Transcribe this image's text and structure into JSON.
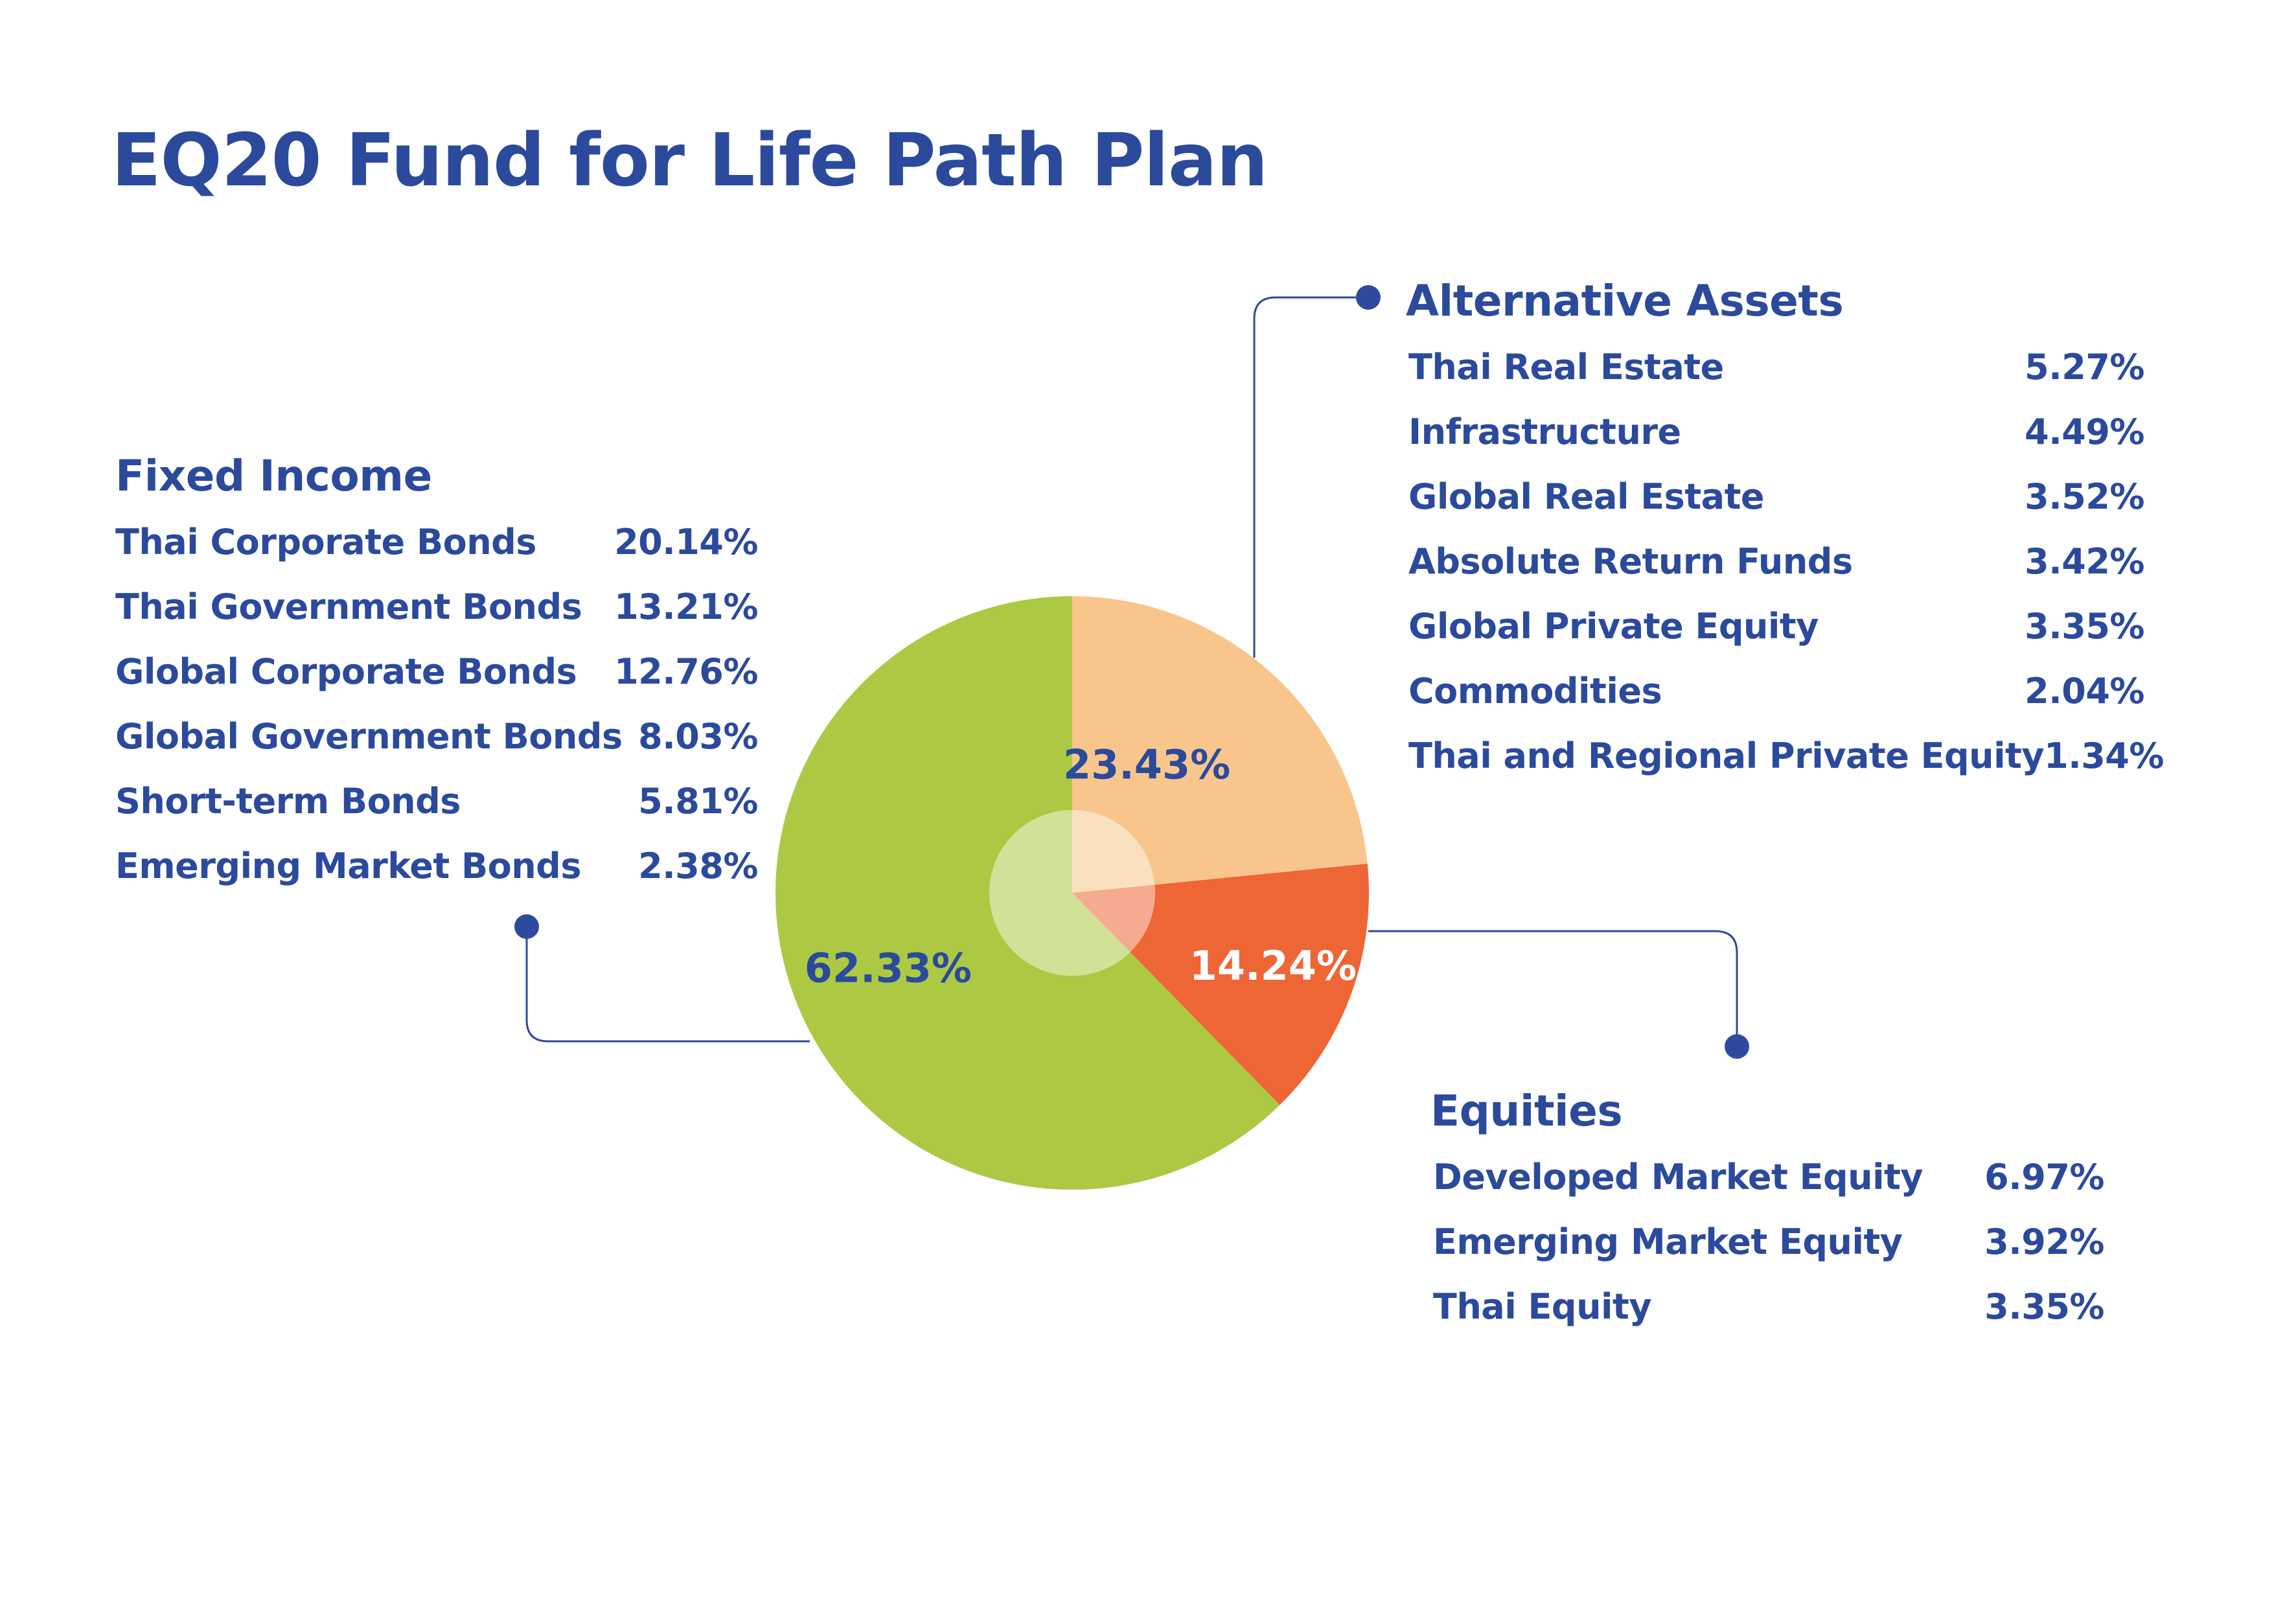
{
  "title": "EQ20 Fund for Life Path Plan",
  "colors": {
    "text": "#2b4a9c",
    "connector": "#2e4a9e",
    "fixed_income": "#adc944",
    "alternative_assets": "#f8c68d",
    "equities": "#ee6536",
    "center_overlay": "#ffffff",
    "slice_label_on_dark": "#ffffff"
  },
  "groups": {
    "fixed_income": {
      "title": "Fixed Income",
      "items": [
        {
          "label": "Thai Corporate Bonds",
          "value": "20.14%"
        },
        {
          "label": "Thai Government Bonds",
          "value": "13.21%"
        },
        {
          "label": "Global Corporate Bonds",
          "value": "12.76%"
        },
        {
          "label": "Global Government Bonds",
          "value": "8.03%"
        },
        {
          "label": "Short-term Bonds",
          "value": "5.81%"
        },
        {
          "label": "Emerging Market Bonds",
          "value": "2.38%"
        }
      ]
    },
    "alternative_assets": {
      "title": "Alternative Assets",
      "items": [
        {
          "label": "Thai Real Estate",
          "value": "5.27%"
        },
        {
          "label": "Infrastructure",
          "value": "4.49%"
        },
        {
          "label": "Global Real Estate",
          "value": "3.52%"
        },
        {
          "label": "Absolute Return Funds",
          "value": "3.42%"
        },
        {
          "label": "Global Private Equity",
          "value": "3.35%"
        },
        {
          "label": "Commodities",
          "value": "2.04%"
        },
        {
          "label": "Thai and Regional Private Equity",
          "value": "1.34%"
        }
      ]
    },
    "equities": {
      "title": "Equities",
      "items": [
        {
          "label": "Developed Market Equity",
          "value": "6.97%"
        },
        {
          "label": "Emerging Market Equity",
          "value": "3.92%"
        },
        {
          "label": "Thai Equity",
          "value": "3.35%"
        }
      ]
    }
  },
  "chart_data": {
    "type": "pie",
    "categories": [
      "Alternative Assets",
      "Equities",
      "Fixed Income"
    ],
    "values": [
      23.43,
      14.24,
      62.33
    ],
    "labels": [
      "23.43%",
      "14.24%",
      "62.33%"
    ],
    "start_angle_deg": 0,
    "direction": "clockwise",
    "slice_colors": [
      "#f8c68d",
      "#ee6536",
      "#adc944"
    ],
    "label_colors": [
      "#2b4a9c",
      "#ffffff",
      "#2b4a9c"
    ]
  }
}
